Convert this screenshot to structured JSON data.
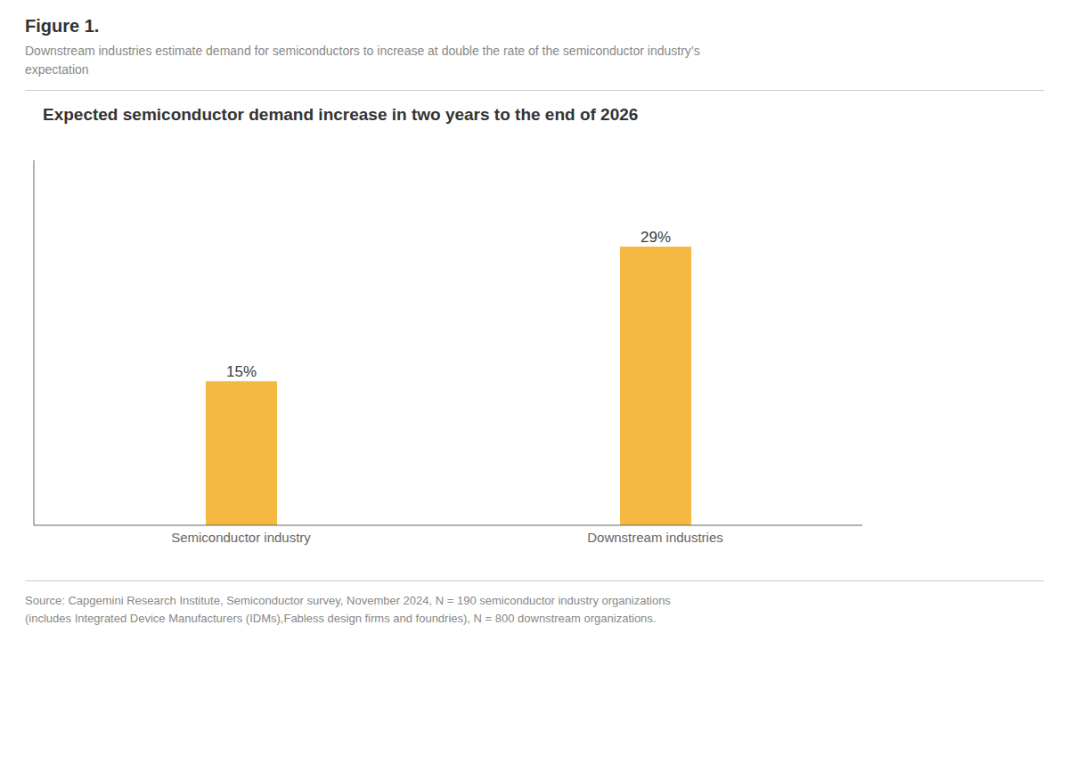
{
  "chart_data": {
    "type": "bar",
    "title": "Expected semiconductor demand increase in two years to the end of 2026",
    "subtitle": "Downstream industries estimate demand for semiconductors to increase at double the rate of the semiconductor industry’s\nexpectation",
    "annotations": [
      "Figure 1.",
      "Source: Capgemini Research Institute, Semiconductor survey, November 2024, N = 190 semiconductor industry organizations\n(includes Integrated Device Manufacturers (IDMs),Fabless design firms and foundries), N = 800 downstream organizations."
    ],
    "categories": [
      "Semiconductor industry",
      "Downstream industries"
    ],
    "values": [
      15,
      29
    ],
    "value_labels": [
      "15%",
      "29%"
    ],
    "color": "#F5B942",
    "ylim": [
      0,
      38
    ],
    "data_labels": true,
    "tick_labels": "x",
    "grid": false
  }
}
